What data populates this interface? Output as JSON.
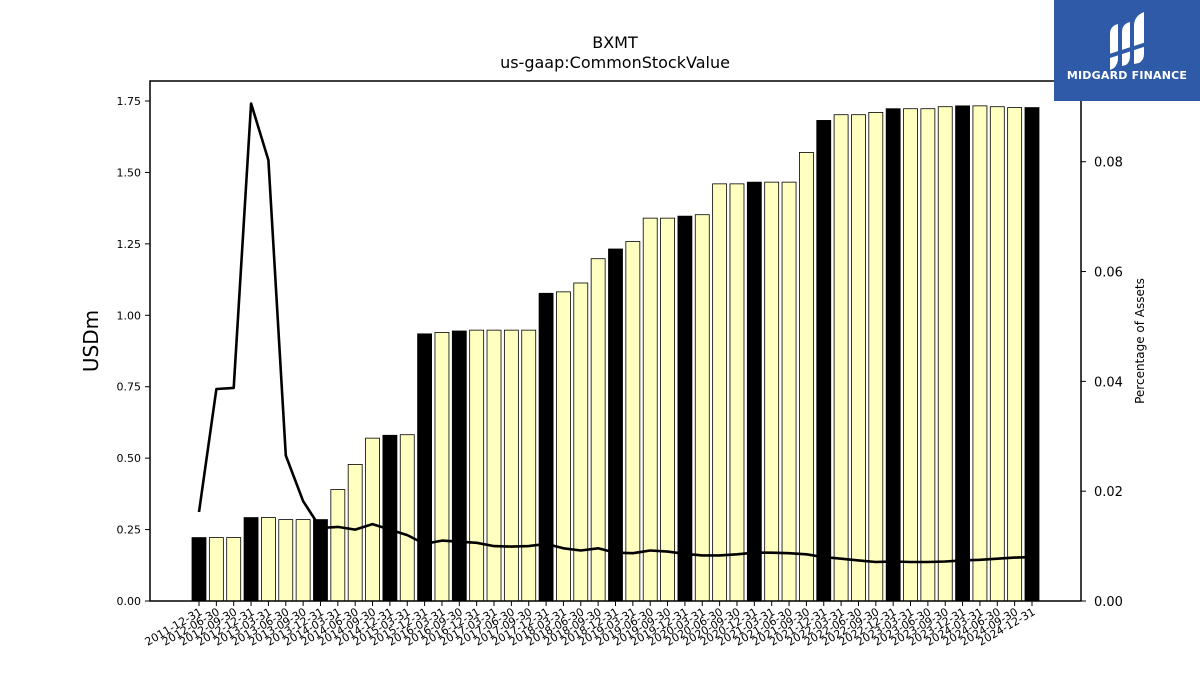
{
  "logo": {
    "text": "MIDGARD FINANCE",
    "icon": "midgard-m-logo-icon",
    "background": "#2f5aa8"
  },
  "colors": {
    "bar_highlight": "#000000",
    "bar_default": "#ffffc0",
    "line": "#000000"
  },
  "chart_data": {
    "type": "bar",
    "title": "BXMT",
    "subtitle": "us-gaap:CommonStockValue",
    "ylabel": "USDm",
    "y2label": "Percentage of Assets",
    "ylim": [
      0,
      1.82
    ],
    "y2lim": [
      0,
      0.0947
    ],
    "yticks": [
      "0.00",
      "0.25",
      "0.50",
      "0.75",
      "1.00",
      "1.25",
      "1.50",
      "1.75"
    ],
    "y2ticks": [
      "0.00",
      "0.02",
      "0.04",
      "0.06",
      "0.08"
    ],
    "categories": [
      "2011-12-31",
      "2012-06-30",
      "2012-09-30",
      "2012-12-31",
      "2013-03-31",
      "2013-06-30",
      "2013-09-30",
      "2013-12-31",
      "2014-03-31",
      "2014-06-30",
      "2014-09-30",
      "2014-12-31",
      "2015-03-31",
      "2015-12-31",
      "2016-03-31",
      "2016-09-30",
      "2016-12-31",
      "2017-03-31",
      "2017-06-30",
      "2017-09-30",
      "2017-12-31",
      "2018-03-31",
      "2018-06-30",
      "2018-09-30",
      "2018-12-31",
      "2019-03-31",
      "2019-06-30",
      "2019-09-30",
      "2019-12-31",
      "2020-03-31",
      "2020-06-30",
      "2020-09-30",
      "2020-12-31",
      "2021-03-31",
      "2021-06-30",
      "2021-09-30",
      "2021-12-31",
      "2022-03-31",
      "2022-06-30",
      "2022-09-30",
      "2022-12-31",
      "2023-03-31",
      "2023-06-30",
      "2023-09-30",
      "2023-12-31",
      "2024-03-31",
      "2024-06-30",
      "2024-09-30",
      "2024-12-31"
    ],
    "series": [
      {
        "type": "bar",
        "values": [
          0.222,
          0.222,
          0.222,
          0.292,
          0.292,
          0.285,
          0.285,
          0.285,
          0.39,
          0.478,
          0.57,
          0.58,
          0.582,
          0.935,
          0.94,
          0.945,
          0.948,
          0.948,
          0.948,
          0.948,
          1.077,
          1.082,
          1.113,
          1.198,
          1.232,
          1.258,
          1.34,
          1.34,
          1.347,
          1.352,
          1.46,
          1.46,
          1.466,
          1.466,
          1.466,
          1.57,
          1.682,
          1.702,
          1.702,
          1.71,
          1.723,
          1.723,
          1.723,
          1.73,
          1.733,
          1.733,
          1.73,
          1.727,
          1.727
        ],
        "highlight": [
          true,
          false,
          false,
          true,
          false,
          false,
          false,
          true,
          false,
          false,
          false,
          true,
          false,
          true,
          false,
          true,
          false,
          false,
          false,
          false,
          true,
          false,
          false,
          false,
          true,
          false,
          false,
          false,
          true,
          false,
          false,
          false,
          true,
          false,
          false,
          false,
          true,
          false,
          false,
          false,
          true,
          false,
          false,
          false,
          true,
          false,
          false,
          false,
          true
        ]
      },
      {
        "type": "line",
        "axis": "right",
        "values": [
          0.0162,
          0.0386,
          0.0388,
          0.0906,
          0.0803,
          0.0265,
          0.0182,
          0.0133,
          0.0135,
          0.013,
          0.014,
          0.013,
          0.012,
          0.0104,
          0.011,
          0.0108,
          0.0106,
          0.01,
          0.0099,
          0.01,
          0.0104,
          0.0096,
          0.0092,
          0.0096,
          0.0088,
          0.0087,
          0.0092,
          0.009,
          0.0086,
          0.0083,
          0.0083,
          0.0085,
          0.0088,
          0.0088,
          0.0087,
          0.0085,
          0.008,
          0.0077,
          0.0074,
          0.0071,
          0.0072,
          0.0071,
          0.0071,
          0.0072,
          0.0074,
          0.0075,
          0.0077,
          0.0079,
          0.008
        ]
      }
    ]
  }
}
